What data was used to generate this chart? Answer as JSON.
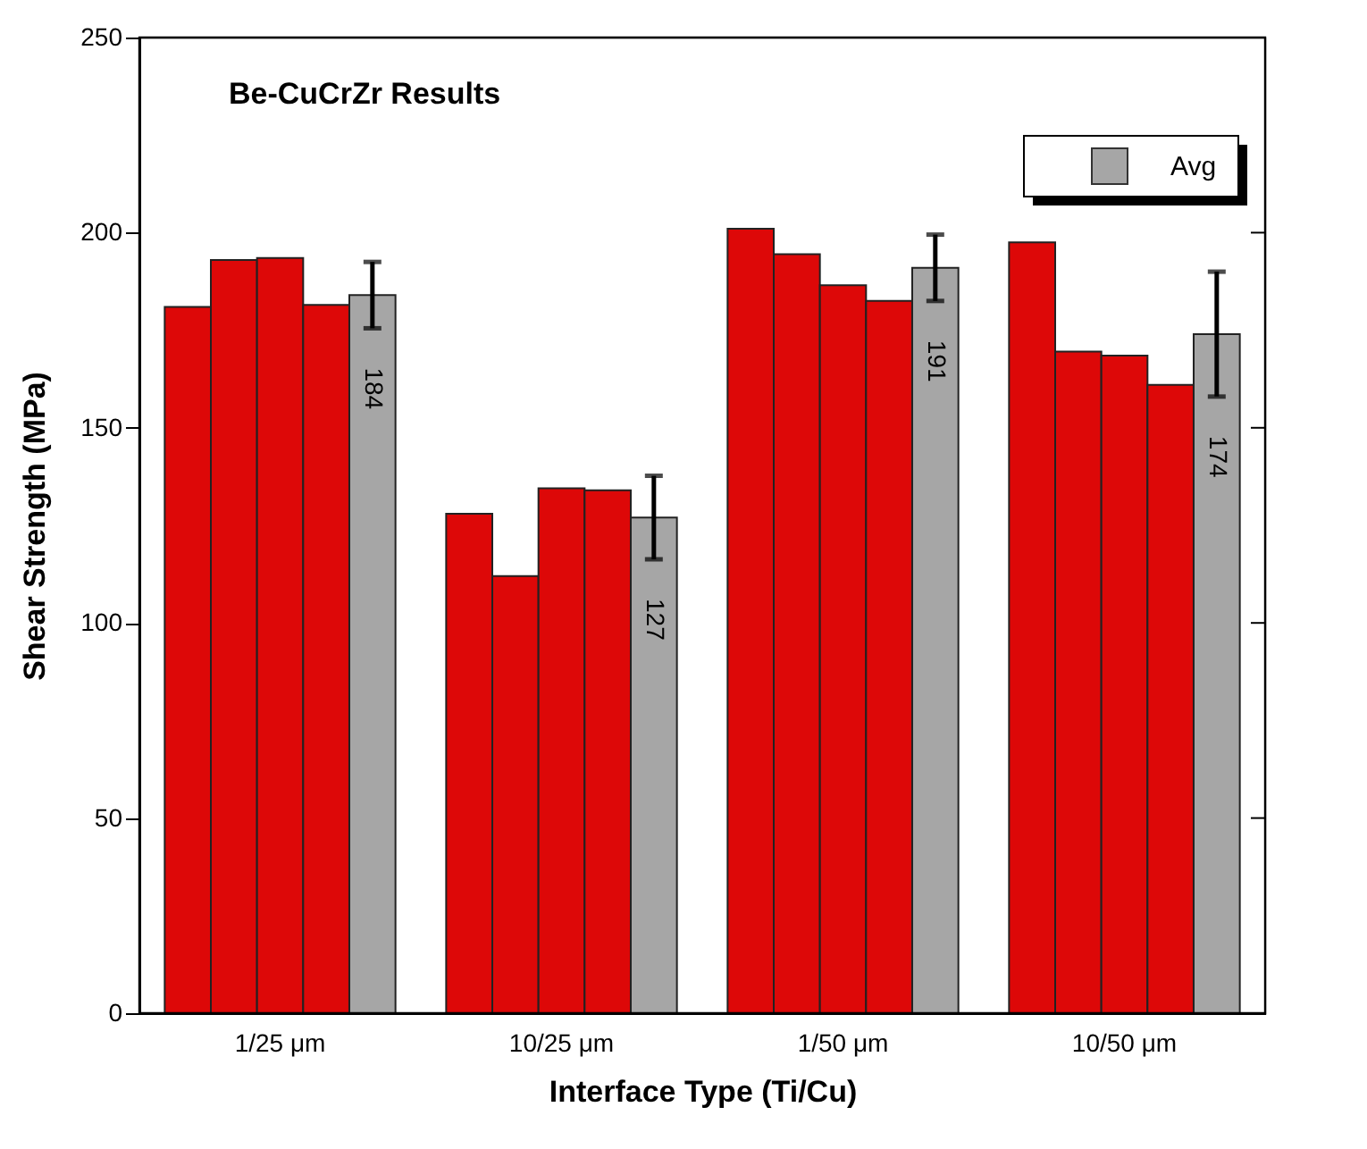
{
  "chart_data": {
    "type": "bar",
    "title": "Be-CuCrZr Results",
    "xlabel": "Interface Type (Ti/Cu)",
    "ylabel": "Shear Strength (MPa)",
    "categories": [
      "1/25 μm",
      "10/25 μm",
      "1/50 μm",
      "10/50 μm"
    ],
    "series": [
      {
        "color": "#dd0808",
        "values": [
          181,
          128,
          201,
          197.5
        ]
      },
      {
        "color": "#dd0808",
        "values": [
          193,
          112,
          194.5,
          169.5
        ]
      },
      {
        "color": "#dd0808",
        "values": [
          193.5,
          134.5,
          186.5,
          168.5
        ]
      },
      {
        "color": "#dd0808",
        "values": [
          181.5,
          134,
          182.5,
          161
        ]
      },
      {
        "name": "Avg",
        "color": "#a6a6a6",
        "values": [
          184,
          127,
          191,
          174
        ],
        "errors": [
          8.5,
          10.7,
          8.5,
          16
        ],
        "value_labels": [
          "184",
          "127",
          "191",
          "174"
        ]
      }
    ],
    "ylim": [
      0,
      250
    ],
    "yticks": [
      0,
      50,
      100,
      150,
      200,
      250
    ],
    "grid": false,
    "legend": "top right"
  }
}
